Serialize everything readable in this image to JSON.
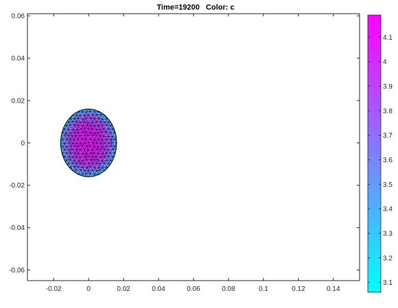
{
  "chart_data": {
    "type": "heatmap",
    "title": "Time=19200   Color: c",
    "xlabel": "",
    "ylabel": "",
    "xlim": [
      -0.035,
      0.155
    ],
    "ylim": [
      -0.065,
      0.061
    ],
    "x_ticks": [
      -0.02,
      0,
      0.02,
      0.04,
      0.06,
      0.08,
      0.1,
      0.12,
      0.14
    ],
    "x_tick_labels": [
      "-0.02",
      "0",
      "0.02",
      "0.04",
      "0.06",
      "0.08",
      "0.1",
      "0.12",
      "0.14"
    ],
    "y_ticks": [
      0.06,
      0.04,
      0.02,
      0,
      -0.02,
      -0.04,
      -0.06
    ],
    "y_tick_labels": [
      "0.06",
      "0.04",
      "0.02",
      "0",
      "-0.02",
      "-0.04",
      "-0.06"
    ],
    "mesh": {
      "shape": "disk",
      "center": [
        0,
        0
      ],
      "radius_x": 0.016,
      "radius_y": 0.016,
      "value_center": 4.08,
      "value_edge": 3.35,
      "edge_color": "#000000"
    },
    "colorbar": {
      "range": [
        3.06,
        4.19
      ],
      "ticks": [
        3.1,
        3.2,
        3.3,
        3.4,
        3.5,
        3.6,
        3.7,
        3.8,
        3.9,
        4,
        4.1
      ],
      "tick_labels": [
        "3.1",
        "3.2",
        "3.3",
        "3.4",
        "3.5",
        "3.6",
        "3.7",
        "3.8",
        "3.9",
        "4",
        "4.1"
      ],
      "colormap": "cool",
      "color_low": "#00ffff",
      "color_high": "#ff00ff"
    },
    "grid": false,
    "legend": false
  }
}
